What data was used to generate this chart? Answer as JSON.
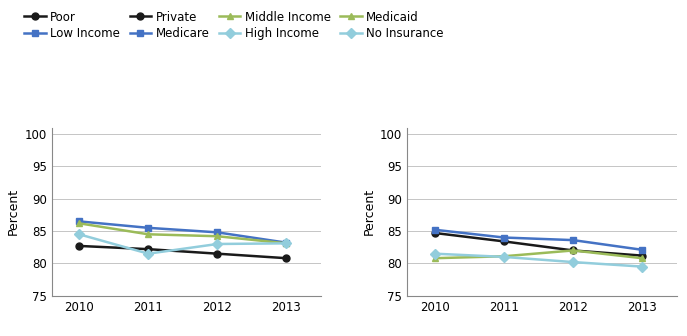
{
  "years": [
    2010,
    2011,
    2012,
    2013
  ],
  "chart1": {
    "series": [
      {
        "label": "Poor",
        "color": "#1a1a1a",
        "marker": "o",
        "values": [
          82.7,
          82.2,
          81.5,
          80.8
        ]
      },
      {
        "label": "Low Income",
        "color": "#4472C4",
        "marker": "s",
        "values": [
          86.5,
          85.5,
          84.8,
          83.2
        ]
      },
      {
        "label": "Middle Income",
        "color": "#9BBB59",
        "marker": "^",
        "values": [
          86.2,
          84.5,
          84.2,
          83.1
        ]
      },
      {
        "label": "High Income",
        "color": "#92CDDC",
        "marker": "D",
        "values": [
          84.5,
          81.5,
          83.0,
          83.1
        ]
      }
    ],
    "ylabel": "Percent",
    "ylim": [
      75,
      101
    ],
    "yticks": [
      75,
      80,
      85,
      90,
      95,
      100
    ]
  },
  "chart2": {
    "series": [
      {
        "label": "Private",
        "color": "#1a1a1a",
        "marker": "o",
        "values": [
          84.7,
          83.4,
          82.0,
          81.2
        ]
      },
      {
        "label": "Medicare",
        "color": "#4472C4",
        "marker": "s",
        "values": [
          85.2,
          84.0,
          83.6,
          82.1
        ]
      },
      {
        "label": "Medicaid",
        "color": "#9BBB59",
        "marker": "^",
        "values": [
          80.8,
          81.1,
          82.0,
          80.8
        ]
      },
      {
        "label": "No Insurance",
        "color": "#92CDDC",
        "marker": "D",
        "values": [
          81.5,
          81.0,
          80.2,
          79.5
        ]
      }
    ],
    "ylabel": "Percent",
    "ylim": [
      75,
      101
    ],
    "yticks": [
      75,
      80,
      85,
      90,
      95,
      100
    ]
  },
  "legend_order": [
    [
      "Poor",
      "Low Income",
      "Private",
      "Medicare"
    ],
    [
      "Middle Income",
      "High Income",
      "Medicaid",
      "No Insurance"
    ]
  ],
  "legend_fontsize": 8.5,
  "axis_fontsize": 9,
  "tick_fontsize": 8.5,
  "linewidth": 1.8,
  "markersize": 5
}
